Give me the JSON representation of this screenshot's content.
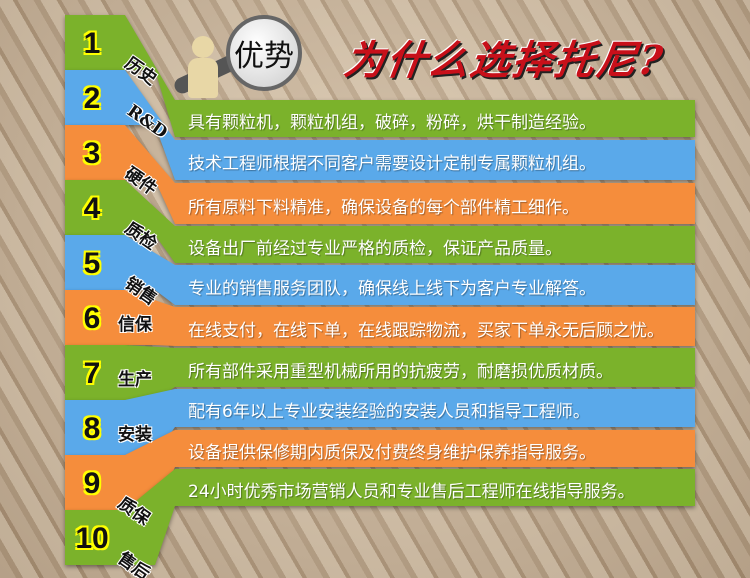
{
  "badge": "优势",
  "title": "为什么选择托尼?",
  "colors": {
    "green": "#7bb22b",
    "blue": "#5aa9ea",
    "orange": "#f58d3c",
    "title": "#c8101a"
  },
  "rows": [
    {
      "num": "1",
      "tag": "历史",
      "text": "具有颗粒机，颗粒机组，破碎，粉碎，烘干制造经验。",
      "color": "green"
    },
    {
      "num": "2",
      "tag": "R&D",
      "text": "技术工程师根据不同客户需要设计定制专属颗粒机组。",
      "color": "blue"
    },
    {
      "num": "3",
      "tag": "硬件",
      "text": "所有原料下料精准，确保设备的每个部件精工细作。",
      "color": "orange"
    },
    {
      "num": "4",
      "tag": "质检",
      "text": "设备出厂前经过专业严格的质检，保证产品质量。",
      "color": "green"
    },
    {
      "num": "5",
      "tag": "销售",
      "text": "专业的销售服务团队，确保线上线下为客户专业解答。",
      "color": "blue"
    },
    {
      "num": "6",
      "tag": "信保",
      "text": "在线支付，在线下单，在线跟踪物流，买家下单永无后顾之忧。",
      "color": "orange"
    },
    {
      "num": "7",
      "tag": "生产",
      "text": "所有部件采用重型机械所用的抗疲劳，耐磨损优质材质。",
      "color": "green"
    },
    {
      "num": "8",
      "tag": "安装",
      "text": "配有6年以上专业安装经验的安装人员和指导工程师。",
      "color": "blue"
    },
    {
      "num": "9",
      "tag": "质保",
      "text": "设备提供保修期内质保及付费终身维护保养指导服务。",
      "color": "orange"
    },
    {
      "num": "10",
      "tag": "售后",
      "text": "24小时优秀市场营销人员和专业售后工程师在线指导服务。",
      "color": "green"
    }
  ]
}
